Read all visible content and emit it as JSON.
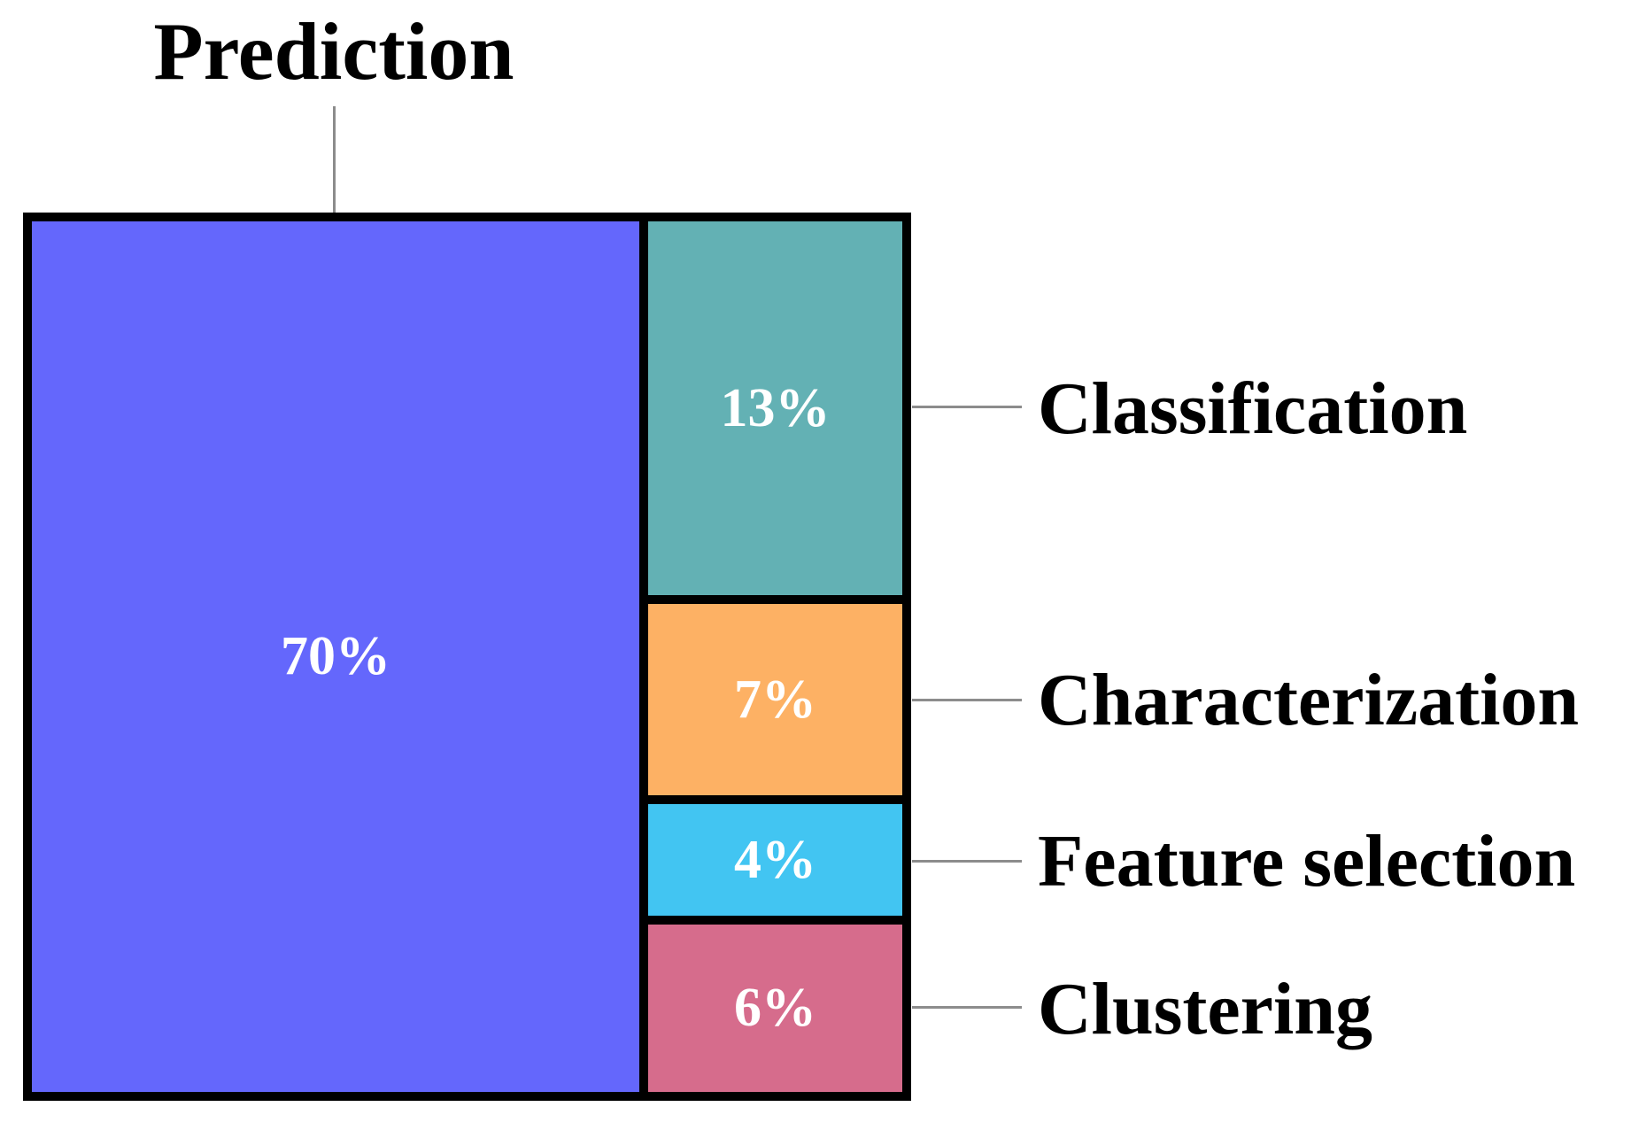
{
  "figure": {
    "background_color": "#ffffff",
    "border_color": "#000000",
    "leader_line_color": "#8c8c8c",
    "value_text_color": "#ffffff",
    "label_text_color": "#000000"
  },
  "chart_data": {
    "type": "treemap",
    "title": "Prediction",
    "legend_position": "labels-with-leader-lines",
    "total_percent": 100,
    "segments": [
      {
        "label": "Prediction",
        "value": 70,
        "pct_label": "70%",
        "color": "#6467fc",
        "label_side": "top"
      },
      {
        "label": "Classification",
        "value": 13,
        "pct_label": "13%",
        "color": "#63b1b4",
        "label_side": "right"
      },
      {
        "label": "Characterization",
        "value": 7,
        "pct_label": "7%",
        "color": "#fdb164",
        "label_side": "right"
      },
      {
        "label": "Feature selection",
        "value": 4,
        "pct_label": "4%",
        "color": "#42c5f2",
        "label_side": "right"
      },
      {
        "label": "Clustering",
        "value": 6,
        "pct_label": "6%",
        "color": "#d66c8c",
        "label_side": "right"
      }
    ]
  }
}
